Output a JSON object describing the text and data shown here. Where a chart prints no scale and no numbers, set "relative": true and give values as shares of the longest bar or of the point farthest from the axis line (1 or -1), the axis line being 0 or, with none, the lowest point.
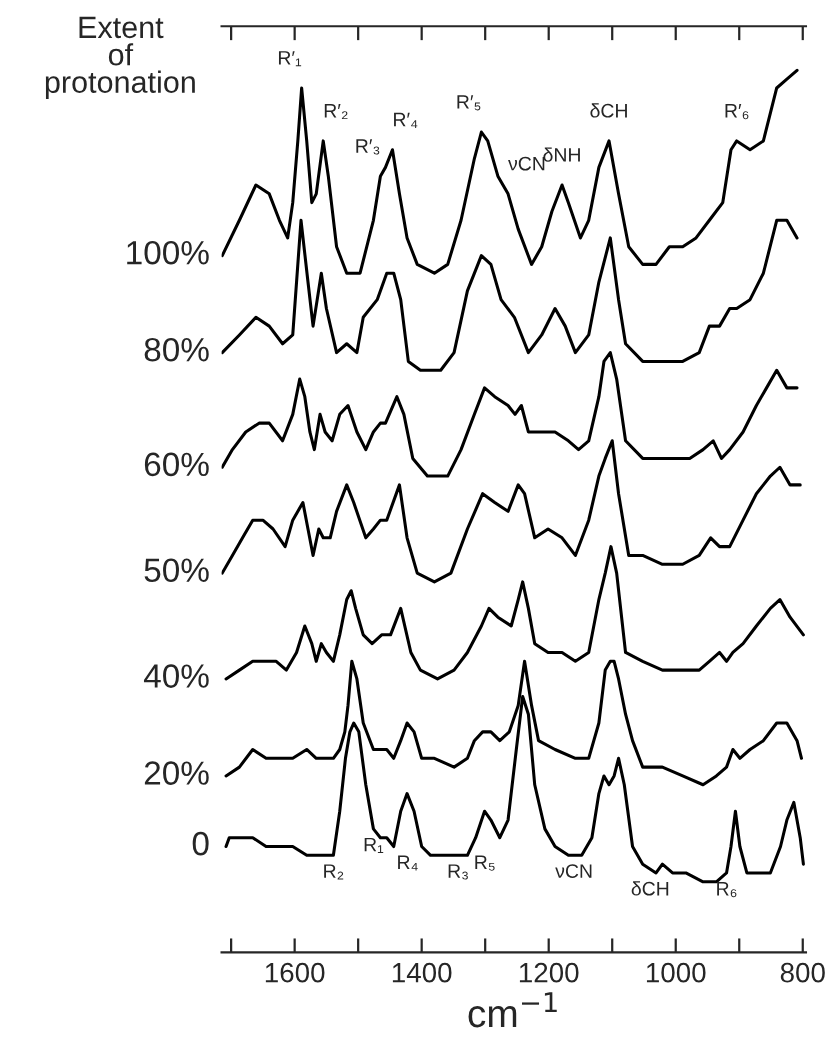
{
  "chart_data": {
    "type": "line",
    "relative": true,
    "xlabel": "cm$^{−1}$",
    "legend_title": "Extent\nof\nprotonation",
    "tick_labels": "x",
    "xlim": [
      1715,
      795
    ],
    "xticks": [
      {
        "value": 1700,
        "label": null
      },
      1600,
      {
        "value": 1500,
        "label": null
      },
      1400,
      {
        "value": 1300,
        "label": null
      },
      1200,
      {
        "value": 1100,
        "label": null
      },
      1000,
      {
        "value": 900,
        "label": null
      },
      800
    ],
    "series": [
      {
        "name": "100%",
        "color": "#000000",
        "x": [
          1714,
          1687,
          1661,
          1640,
          1624,
          1611,
          1603,
          1595,
          1589,
          1581,
          1573,
          1566,
          1555,
          1547,
          1534,
          1518,
          1497,
          1476,
          1465,
          1457,
          1446,
          1435,
          1423,
          1407,
          1380,
          1359,
          1338,
          1317,
          1306,
          1296,
          1280,
          1264,
          1248,
          1227,
          1211,
          1195,
          1179,
          1169,
          1150,
          1137,
          1121,
          1105,
          1090,
          1074,
          1052,
          1031,
          1010,
          989,
          968,
          947,
          926,
          913,
          904,
          883,
          862,
          841,
          825,
          809
        ],
        "values": [
          0.79,
          0.83,
          0.87,
          0.86,
          0.83,
          0.81,
          0.85,
          0.92,
          0.98,
          0.92,
          0.85,
          0.86,
          0.92,
          0.88,
          0.8,
          0.77,
          0.77,
          0.83,
          0.88,
          0.89,
          0.91,
          0.86,
          0.81,
          0.78,
          0.77,
          0.78,
          0.83,
          0.9,
          0.93,
          0.92,
          0.88,
          0.86,
          0.82,
          0.78,
          0.8,
          0.84,
          0.87,
          0.85,
          0.81,
          0.83,
          0.89,
          0.92,
          0.86,
          0.8,
          0.78,
          0.78,
          0.8,
          0.8,
          0.81,
          0.83,
          0.85,
          0.91,
          0.92,
          0.91,
          0.92,
          0.98,
          0.99,
          1.0
        ]
      },
      {
        "name": "80%",
        "color": "#000000",
        "x": [
          1714,
          1687,
          1661,
          1640,
          1619,
          1603,
          1590,
          1579,
          1571,
          1558,
          1550,
          1534,
          1518,
          1502,
          1492,
          1470,
          1455,
          1444,
          1433,
          1421,
          1402,
          1370,
          1349,
          1328,
          1306,
          1291,
          1275,
          1254,
          1232,
          1211,
          1190,
          1174,
          1158,
          1137,
          1121,
          1103,
          1090,
          1079,
          1052,
          1021,
          989,
          963,
          947,
          931,
          915,
          904,
          883,
          862,
          841,
          825,
          809
        ],
        "values": [
          0.68,
          0.7,
          0.72,
          0.71,
          0.69,
          0.7,
          0.83,
          0.76,
          0.71,
          0.77,
          0.73,
          0.68,
          0.69,
          0.68,
          0.72,
          0.74,
          0.77,
          0.77,
          0.74,
          0.67,
          0.66,
          0.66,
          0.68,
          0.75,
          0.79,
          0.78,
          0.74,
          0.72,
          0.68,
          0.7,
          0.73,
          0.71,
          0.68,
          0.7,
          0.76,
          0.81,
          0.74,
          0.69,
          0.67,
          0.67,
          0.67,
          0.68,
          0.71,
          0.71,
          0.73,
          0.73,
          0.74,
          0.77,
          0.83,
          0.83,
          0.81
        ]
      },
      {
        "name": "60%",
        "color": "#000000",
        "x": [
          1714,
          1698,
          1677,
          1656,
          1640,
          1619,
          1603,
          1592,
          1584,
          1576,
          1569,
          1560,
          1552,
          1541,
          1529,
          1516,
          1502,
          1488,
          1476,
          1465,
          1457,
          1439,
          1428,
          1414,
          1391,
          1359,
          1338,
          1317,
          1301,
          1285,
          1264,
          1253,
          1243,
          1232,
          1216,
          1190,
          1169,
          1153,
          1137,
          1121,
          1113,
          1103,
          1093,
          1079,
          1052,
          1021,
          978,
          957,
          941,
          928,
          915,
          894,
          873,
          857,
          841,
          825,
          809
        ],
        "values": [
          0.55,
          0.57,
          0.59,
          0.6,
          0.6,
          0.58,
          0.61,
          0.65,
          0.63,
          0.59,
          0.57,
          0.61,
          0.59,
          0.58,
          0.61,
          0.62,
          0.59,
          0.57,
          0.59,
          0.6,
          0.6,
          0.63,
          0.61,
          0.56,
          0.54,
          0.54,
          0.57,
          0.61,
          0.64,
          0.63,
          0.62,
          0.61,
          0.62,
          0.59,
          0.59,
          0.59,
          0.58,
          0.57,
          0.58,
          0.63,
          0.67,
          0.68,
          0.65,
          0.58,
          0.56,
          0.56,
          0.56,
          0.57,
          0.58,
          0.56,
          0.57,
          0.59,
          0.62,
          0.64,
          0.66,
          0.64,
          0.64
        ]
      },
      {
        "name": "50%",
        "color": "#000000",
        "x": [
          1714,
          1698,
          1682,
          1666,
          1650,
          1634,
          1615,
          1603,
          1587,
          1579,
          1571,
          1562,
          1555,
          1544,
          1534,
          1518,
          1507,
          1488,
          1476,
          1465,
          1455,
          1435,
          1423,
          1407,
          1380,
          1354,
          1328,
          1304,
          1285,
          1264,
          1248,
          1238,
          1222,
          1201,
          1179,
          1158,
          1137,
          1121,
          1111,
          1100,
          1090,
          1074,
          1052,
          1021,
          989,
          963,
          945,
          931,
          915,
          894,
          873,
          851,
          836,
          820,
          804
        ],
        "values": [
          0.43,
          0.45,
          0.47,
          0.49,
          0.49,
          0.48,
          0.46,
          0.49,
          0.51,
          0.48,
          0.45,
          0.48,
          0.47,
          0.47,
          0.5,
          0.53,
          0.51,
          0.47,
          0.48,
          0.49,
          0.49,
          0.53,
          0.47,
          0.43,
          0.42,
          0.43,
          0.48,
          0.52,
          0.51,
          0.5,
          0.53,
          0.52,
          0.47,
          0.48,
          0.47,
          0.45,
          0.49,
          0.54,
          0.56,
          0.58,
          0.52,
          0.45,
          0.45,
          0.44,
          0.44,
          0.45,
          0.47,
          0.46,
          0.46,
          0.49,
          0.52,
          0.54,
          0.55,
          0.53,
          0.53
        ]
      },
      {
        "name": "40%",
        "color": "#000000",
        "x": [
          1708,
          1687,
          1666,
          1645,
          1629,
          1613,
          1597,
          1584,
          1573,
          1566,
          1558,
          1550,
          1539,
          1529,
          1518,
          1511,
          1504,
          1492,
          1478,
          1463,
          1449,
          1433,
          1417,
          1402,
          1375,
          1349,
          1328,
          1306,
          1294,
          1280,
          1259,
          1248,
          1241,
          1232,
          1222,
          1201,
          1179,
          1158,
          1137,
          1121,
          1111,
          1102,
          1093,
          1079,
          1052,
          1021,
          989,
          963,
          947,
          931,
          920,
          910,
          894,
          873,
          851,
          836,
          820,
          799
        ],
        "values": [
          0.31,
          0.32,
          0.33,
          0.33,
          0.33,
          0.32,
          0.34,
          0.37,
          0.35,
          0.33,
          0.35,
          0.34,
          0.33,
          0.36,
          0.4,
          0.41,
          0.39,
          0.36,
          0.35,
          0.36,
          0.36,
          0.39,
          0.34,
          0.32,
          0.31,
          0.32,
          0.34,
          0.37,
          0.39,
          0.38,
          0.37,
          0.4,
          0.42,
          0.39,
          0.35,
          0.34,
          0.34,
          0.33,
          0.34,
          0.4,
          0.43,
          0.46,
          0.43,
          0.34,
          0.33,
          0.32,
          0.32,
          0.32,
          0.33,
          0.34,
          0.33,
          0.34,
          0.35,
          0.37,
          0.39,
          0.4,
          0.38,
          0.36
        ]
      },
      {
        "name": "20%",
        "color": "#000000",
        "x": [
          1708,
          1687,
          1666,
          1645,
          1624,
          1603,
          1581,
          1566,
          1550,
          1539,
          1529,
          1521,
          1516,
          1510,
          1502,
          1492,
          1476,
          1465,
          1455,
          1444,
          1433,
          1423,
          1412,
          1400,
          1380,
          1349,
          1328,
          1317,
          1304,
          1291,
          1277,
          1262,
          1248,
          1238,
          1227,
          1216,
          1190,
          1158,
          1137,
          1121,
          1111,
          1103,
          1097,
          1090,
          1079,
          1068,
          1052,
          1021,
          989,
          957,
          936,
          920,
          910,
          899,
          883,
          862,
          841,
          825,
          809,
          802
        ],
        "values": [
          0.2,
          0.21,
          0.23,
          0.22,
          0.22,
          0.22,
          0.23,
          0.22,
          0.22,
          0.22,
          0.23,
          0.25,
          0.28,
          0.33,
          0.31,
          0.26,
          0.23,
          0.23,
          0.23,
          0.22,
          0.24,
          0.26,
          0.25,
          0.22,
          0.22,
          0.21,
          0.22,
          0.24,
          0.25,
          0.25,
          0.24,
          0.25,
          0.28,
          0.33,
          0.28,
          0.24,
          0.23,
          0.22,
          0.22,
          0.26,
          0.32,
          0.33,
          0.33,
          0.31,
          0.27,
          0.24,
          0.21,
          0.21,
          0.2,
          0.19,
          0.2,
          0.21,
          0.23,
          0.22,
          0.23,
          0.24,
          0.26,
          0.26,
          0.24,
          0.22
        ]
      },
      {
        "name": "0",
        "color": "#000000",
        "x": [
          1708,
          1703,
          1687,
          1666,
          1645,
          1624,
          1603,
          1581,
          1560,
          1539,
          1529,
          1520,
          1513,
          1507,
          1499,
          1488,
          1476,
          1465,
          1455,
          1444,
          1433,
          1423,
          1412,
          1400,
          1386,
          1349,
          1328,
          1315,
          1301,
          1291,
          1277,
          1264,
          1251,
          1241,
          1232,
          1222,
          1206,
          1190,
          1169,
          1148,
          1132,
          1121,
          1113,
          1105,
          1097,
          1090,
          1081,
          1068,
          1052,
          1031,
          1021,
          1005,
          984,
          957,
          936,
          920,
          913,
          906,
          899,
          888,
          873,
          851,
          835,
          825,
          814,
          804,
          799
        ],
        "values": [
          0.12,
          0.13,
          0.13,
          0.13,
          0.12,
          0.12,
          0.12,
          0.11,
          0.11,
          0.11,
          0.16,
          0.22,
          0.25,
          0.26,
          0.25,
          0.19,
          0.14,
          0.13,
          0.13,
          0.12,
          0.16,
          0.18,
          0.16,
          0.12,
          0.11,
          0.11,
          0.11,
          0.13,
          0.16,
          0.15,
          0.13,
          0.15,
          0.23,
          0.29,
          0.27,
          0.19,
          0.14,
          0.12,
          0.11,
          0.11,
          0.13,
          0.18,
          0.2,
          0.19,
          0.2,
          0.22,
          0.19,
          0.12,
          0.1,
          0.09,
          0.1,
          0.09,
          0.09,
          0.08,
          0.08,
          0.09,
          0.12,
          0.16,
          0.12,
          0.09,
          0.09,
          0.09,
          0.12,
          0.15,
          0.17,
          0.13,
          0.1
        ]
      }
    ],
    "annotations": [
      {
        "text": "R′₁",
        "x": 1589,
        "y": 0.98
      },
      {
        "text": "R′₂",
        "x": 1555,
        "y": 0.92
      },
      {
        "text": "R′₃",
        "x": 1465,
        "y": 0.88
      },
      {
        "text": "R′₄",
        "x": 1446,
        "y": 0.91
      },
      {
        "text": "R′₅",
        "x": 1306,
        "y": 0.93
      },
      {
        "text": "νCN",
        "x": 1264,
        "y": 0.86
      },
      {
        "text": "δNH",
        "x": 1179,
        "y": 0.87
      },
      {
        "text": "δCH",
        "x": 1105,
        "y": 0.92
      },
      {
        "text": "R′₆",
        "x": 904,
        "y": 0.92
      },
      {
        "text": "R₂",
        "x": 1539,
        "y": 0.11
      },
      {
        "text": "R₁",
        "x": 1476,
        "y": 0.14
      },
      {
        "text": "R₄",
        "x": 1405,
        "y": 0.12
      },
      {
        "text": "R₃",
        "x": 1360,
        "y": 0.11
      },
      {
        "text": "R₅",
        "x": 1318,
        "y": 0.12
      },
      {
        "text": "νCN",
        "x": 1160,
        "y": 0.11
      },
      {
        "text": "δCH",
        "x": 1040,
        "y": 0.09
      },
      {
        "text": "R₆",
        "x": 920,
        "y": 0.09
      }
    ]
  }
}
